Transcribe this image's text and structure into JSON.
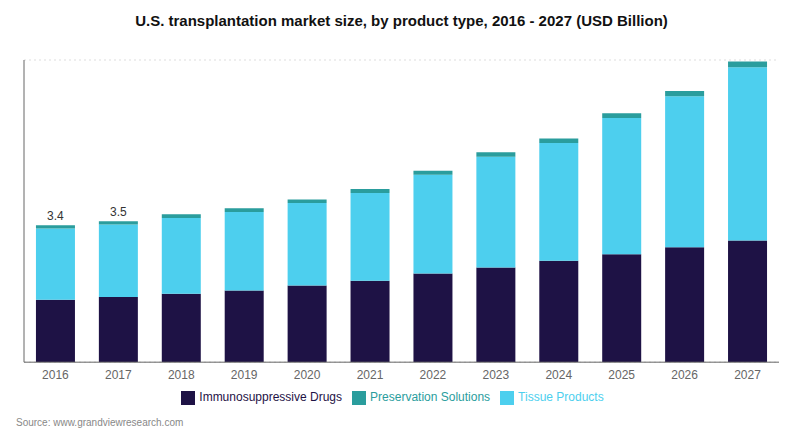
{
  "chart_data": {
    "type": "bar",
    "title": "U.S. transplantation market size, by product type, 2016 - 2027 (USD Billion)",
    "categories": [
      "2016",
      "2017",
      "2018",
      "2019",
      "2020",
      "2021",
      "2022",
      "2023",
      "2024",
      "2025",
      "2026",
      "2027"
    ],
    "series": [
      {
        "name": "Immunosuppressive Drugs",
        "color": "#1e1245",
        "values": [
          1.55,
          1.62,
          1.7,
          1.78,
          1.9,
          2.02,
          2.2,
          2.35,
          2.52,
          2.68,
          2.85,
          3.02
        ]
      },
      {
        "name": "Tissue Products",
        "color": "#4dcfee",
        "values": [
          1.77,
          1.8,
          1.88,
          1.95,
          2.05,
          2.18,
          2.45,
          2.75,
          2.92,
          3.38,
          3.75,
          4.3
        ]
      },
      {
        "name": "Preservation Solutions",
        "color": "#2a9d9d",
        "values": [
          0.08,
          0.08,
          0.09,
          0.09,
          0.09,
          0.1,
          0.1,
          0.11,
          0.11,
          0.12,
          0.13,
          0.14
        ]
      }
    ],
    "annotations": [
      {
        "x": "2016",
        "text": "3.4"
      },
      {
        "x": "2017",
        "text": "3.5"
      }
    ],
    "source": "Source: www.grandviewresearch.com",
    "ylim": [
      0,
      7.5
    ],
    "yticks": [
      1,
      2,
      3,
      4,
      5,
      6,
      7
    ],
    "grid": true,
    "stacked": true,
    "legend": "bottom",
    "tick_labels": "x"
  }
}
